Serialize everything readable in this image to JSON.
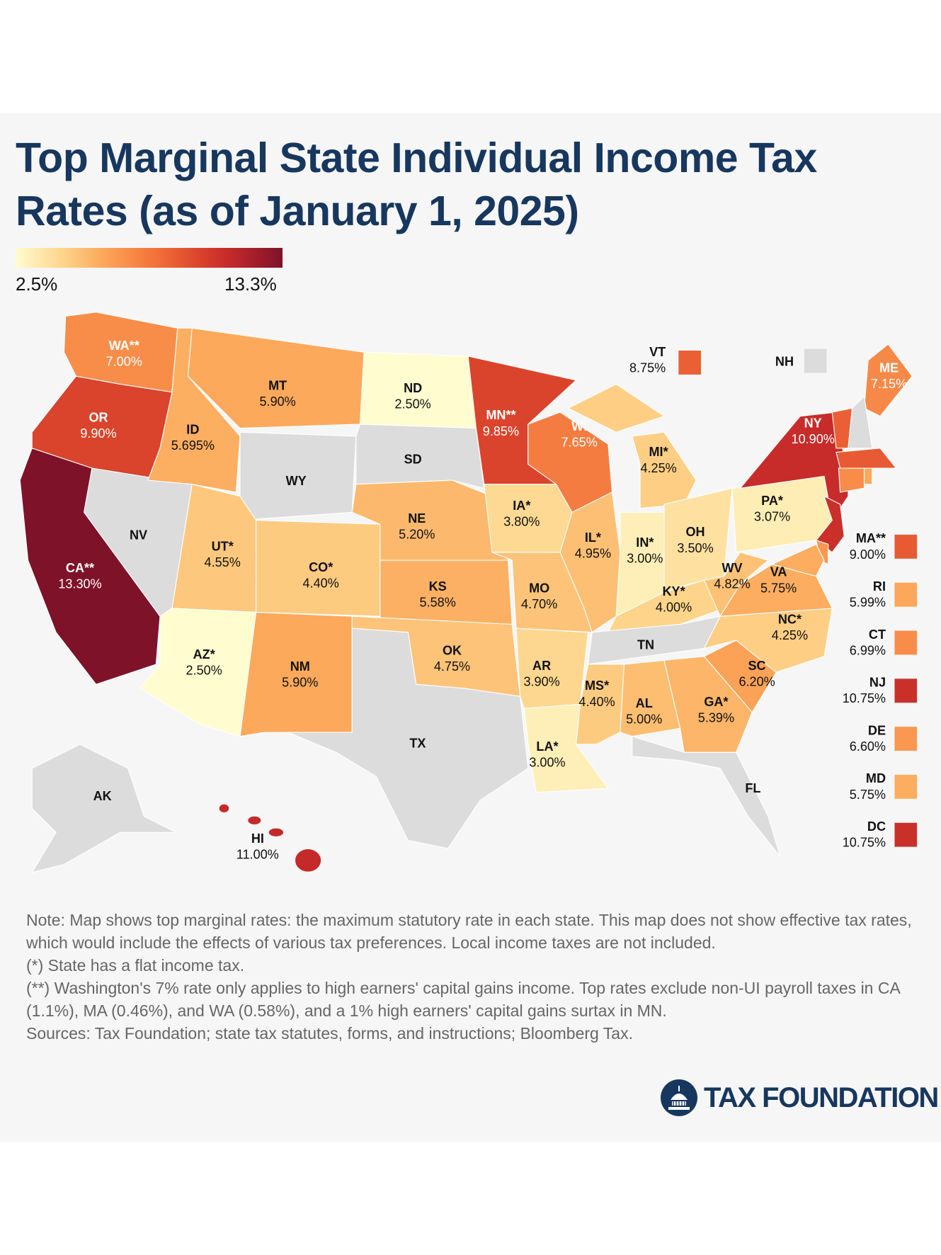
{
  "title": "Top Marginal State Individual Income Tax Rates (as of January 1, 2025)",
  "scale": {
    "min_label": "2.5%",
    "max_label": "13.3%",
    "min": 2.5,
    "max": 13.3
  },
  "colors": {
    "no_tax": "#dcdcdc",
    "title": "#17375e",
    "background": "#f6f6f7"
  },
  "states": [
    {
      "code": "WA",
      "label": "WA**",
      "rate_label": "7.00%",
      "rate": 7.0
    },
    {
      "code": "OR",
      "label": "OR",
      "rate_label": "9.90%",
      "rate": 9.9
    },
    {
      "code": "CA",
      "label": "CA**",
      "rate_label": "13.30%",
      "rate": 13.3
    },
    {
      "code": "NV",
      "label": "NV",
      "rate_label": "",
      "rate": null
    },
    {
      "code": "ID",
      "label": "ID",
      "rate_label": "5.695%",
      "rate": 5.695
    },
    {
      "code": "MT",
      "label": "MT",
      "rate_label": "5.90%",
      "rate": 5.9
    },
    {
      "code": "WY",
      "label": "WY",
      "rate_label": "",
      "rate": null
    },
    {
      "code": "UT",
      "label": "UT*",
      "rate_label": "4.55%",
      "rate": 4.55
    },
    {
      "code": "CO",
      "label": "CO*",
      "rate_label": "4.40%",
      "rate": 4.4
    },
    {
      "code": "AZ",
      "label": "AZ*",
      "rate_label": "2.50%",
      "rate": 2.5
    },
    {
      "code": "NM",
      "label": "NM",
      "rate_label": "5.90%",
      "rate": 5.9
    },
    {
      "code": "ND",
      "label": "ND",
      "rate_label": "2.50%",
      "rate": 2.5
    },
    {
      "code": "SD",
      "label": "SD",
      "rate_label": "",
      "rate": null
    },
    {
      "code": "NE",
      "label": "NE",
      "rate_label": "5.20%",
      "rate": 5.2
    },
    {
      "code": "KS",
      "label": "KS",
      "rate_label": "5.58%",
      "rate": 5.58
    },
    {
      "code": "OK",
      "label": "OK",
      "rate_label": "4.75%",
      "rate": 4.75
    },
    {
      "code": "TX",
      "label": "TX",
      "rate_label": "",
      "rate": null
    },
    {
      "code": "MN",
      "label": "MN**",
      "rate_label": "9.85%",
      "rate": 9.85
    },
    {
      "code": "IA",
      "label": "IA*",
      "rate_label": "3.80%",
      "rate": 3.8
    },
    {
      "code": "MO",
      "label": "MO",
      "rate_label": "4.70%",
      "rate": 4.7
    },
    {
      "code": "AR",
      "label": "AR",
      "rate_label": "3.90%",
      "rate": 3.9
    },
    {
      "code": "LA",
      "label": "LA*",
      "rate_label": "3.00%",
      "rate": 3.0
    },
    {
      "code": "WI",
      "label": "WI",
      "rate_label": "7.65%",
      "rate": 7.65
    },
    {
      "code": "IL",
      "label": "IL*",
      "rate_label": "4.95%",
      "rate": 4.95
    },
    {
      "code": "MI",
      "label": "MI*",
      "rate_label": "4.25%",
      "rate": 4.25
    },
    {
      "code": "IN",
      "label": "IN*",
      "rate_label": "3.00%",
      "rate": 3.0
    },
    {
      "code": "OH",
      "label": "OH",
      "rate_label": "3.50%",
      "rate": 3.5
    },
    {
      "code": "KY",
      "label": "KY*",
      "rate_label": "4.00%",
      "rate": 4.0
    },
    {
      "code": "TN",
      "label": "TN",
      "rate_label": "",
      "rate": null
    },
    {
      "code": "MS",
      "label": "MS*",
      "rate_label": "4.40%",
      "rate": 4.4
    },
    {
      "code": "AL",
      "label": "AL",
      "rate_label": "5.00%",
      "rate": 5.0
    },
    {
      "code": "GA",
      "label": "GA*",
      "rate_label": "5.39%",
      "rate": 5.39
    },
    {
      "code": "FL",
      "label": "FL",
      "rate_label": "",
      "rate": null
    },
    {
      "code": "SC",
      "label": "SC",
      "rate_label": "6.20%",
      "rate": 6.2
    },
    {
      "code": "NC",
      "label": "NC*",
      "rate_label": "4.25%",
      "rate": 4.25
    },
    {
      "code": "VA",
      "label": "VA",
      "rate_label": "5.75%",
      "rate": 5.75
    },
    {
      "code": "WV",
      "label": "WV",
      "rate_label": "4.82%",
      "rate": 4.82
    },
    {
      "code": "PA",
      "label": "PA*",
      "rate_label": "3.07%",
      "rate": 3.07
    },
    {
      "code": "NY",
      "label": "NY",
      "rate_label": "10.90%",
      "rate": 10.9
    },
    {
      "code": "ME",
      "label": "ME",
      "rate_label": "7.15%",
      "rate": 7.15
    },
    {
      "code": "AK",
      "label": "AK",
      "rate_label": "",
      "rate": null
    },
    {
      "code": "HI",
      "label": "HI",
      "rate_label": "11.00%",
      "rate": 11.0
    }
  ],
  "callouts": [
    {
      "code": "VT",
      "label": "VT",
      "rate_label": "8.75%",
      "rate": 8.75
    },
    {
      "code": "NH",
      "label": "NH",
      "rate_label": "",
      "rate": null
    },
    {
      "code": "MA",
      "label": "MA**",
      "rate_label": "9.00%",
      "rate": 9.0
    },
    {
      "code": "RI",
      "label": "RI",
      "rate_label": "5.99%",
      "rate": 5.99
    },
    {
      "code": "CT",
      "label": "CT",
      "rate_label": "6.99%",
      "rate": 6.99
    },
    {
      "code": "NJ",
      "label": "NJ",
      "rate_label": "10.75%",
      "rate": 10.75
    },
    {
      "code": "DE",
      "label": "DE",
      "rate_label": "6.60%",
      "rate": 6.6
    },
    {
      "code": "MD",
      "label": "MD",
      "rate_label": "5.75%",
      "rate": 5.75
    },
    {
      "code": "DC",
      "label": "DC",
      "rate_label": "10.75%",
      "rate": 10.75
    }
  ],
  "notes": [
    "Note: Map shows top marginal rates: the maximum statutory rate in each state. This map does not show effective tax rates, which would include the effects of various tax preferences. Local income taxes are not included.",
    "(*) State has a flat income tax.",
    "(**) Washington's 7% rate only applies to high earners' capital gains income. Top rates exclude non-UI payroll taxes in CA (1.1%), MA (0.46%), and WA (0.58%), and a 1% high earners' capital gains surtax in MN.",
    "Sources: Tax Foundation; state tax statutes, forms, and instructions; Bloomberg Tax."
  ],
  "logo": {
    "text": "TAX FOUNDATION"
  }
}
